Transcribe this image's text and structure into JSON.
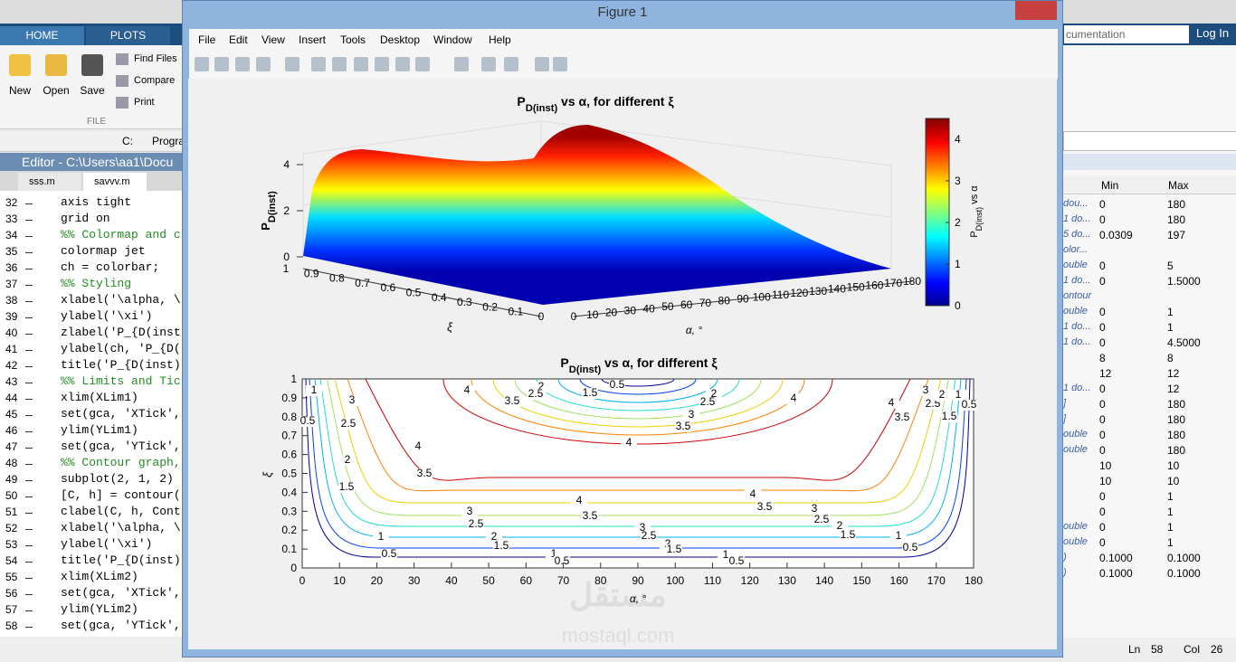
{
  "matlab": {
    "tabs": [
      "HOME",
      "PLOTS"
    ],
    "file_buttons": [
      "New",
      "Open",
      "Save"
    ],
    "file_tools": [
      "Find Files",
      "Compare",
      "Print"
    ],
    "section": "FILE",
    "path": [
      "C:",
      "Progra"
    ],
    "editor_title": "Editor - C:\\Users\\aa1\\Docu",
    "editor_tabs": [
      "sss.m",
      "savvv.m"
    ],
    "code_lines": [
      {
        "n": "32",
        "code": "axis tight"
      },
      {
        "n": "33",
        "code": "grid on"
      },
      {
        "n": "34",
        "code": "%% Colormap and c"
      },
      {
        "n": "35",
        "code": "colormap jet"
      },
      {
        "n": "36",
        "code": "ch = colorbar;"
      },
      {
        "n": "37",
        "code": "%% Styling"
      },
      {
        "n": "38",
        "code": "xlabel('\\alpha, \\"
      },
      {
        "n": "39",
        "code": "ylabel('\\xi')"
      },
      {
        "n": "40",
        "code": "zlabel('P_{D(inst"
      },
      {
        "n": "41",
        "code": "ylabel(ch, 'P_{D("
      },
      {
        "n": "42",
        "code": "title('P_{D(inst)"
      },
      {
        "n": "43",
        "code": "%% Limits and Tic"
      },
      {
        "n": "44",
        "code": "xlim(XLim1)"
      },
      {
        "n": "45",
        "code": "set(gca, 'XTick',"
      },
      {
        "n": "46",
        "code": "ylim(YLim1)"
      },
      {
        "n": "47",
        "code": "set(gca, 'YTick',"
      },
      {
        "n": "48",
        "code": "%% Contour graph,"
      },
      {
        "n": "49",
        "code": "subplot(2, 1, 2)"
      },
      {
        "n": "50",
        "code": "[C, h] = contour("
      },
      {
        "n": "51",
        "code": "clabel(C, h, Cont"
      },
      {
        "n": "52",
        "code": "xlabel('\\alpha, \\"
      },
      {
        "n": "53",
        "code": "ylabel('\\xi')"
      },
      {
        "n": "54",
        "code": "title('P_{D(inst)"
      },
      {
        "n": "55",
        "code": "xlim(XLim2)"
      },
      {
        "n": "56",
        "code": "set(gca, 'XTick',"
      },
      {
        "n": "57",
        "code": "ylim(YLim2)"
      },
      {
        "n": "58",
        "code": "set(gca, 'YTick',"
      }
    ],
    "search": "cumentation",
    "login": "Log In",
    "workspace": {
      "headers": [
        "Min",
        "Max"
      ],
      "rows": [
        {
          "name": "dou...",
          "min": "0",
          "max": "180"
        },
        {
          "name": "1 do...",
          "min": "0",
          "max": "180"
        },
        {
          "name": "5 do...",
          "min": "0.0309",
          "max": "197"
        },
        {
          "name": "olor..."
        },
        {
          "name": "ouble",
          "min": "0",
          "max": "5"
        },
        {
          "name": "1 do...",
          "min": "0",
          "max": "1.5000"
        },
        {
          "name": "ontour"
        },
        {
          "name": "ouble",
          "min": "0",
          "max": "1"
        },
        {
          "name": "1 do...",
          "min": "0",
          "max": "1"
        },
        {
          "name": "1 do...",
          "min": "0",
          "max": "4.5000"
        },
        {
          "min": "8",
          "max": "8"
        },
        {
          "min": "12",
          "max": "12"
        },
        {
          "name": "1 do...",
          "min": "0",
          "max": "12"
        },
        {
          "name": "]",
          "min": "0",
          "max": "180"
        },
        {
          "name": "]",
          "min": "0",
          "max": "180"
        },
        {
          "name": "ouble",
          "min": "0",
          "max": "180"
        },
        {
          "name": "ouble",
          "min": "0",
          "max": "180"
        },
        {
          "min": "10",
          "max": "10"
        },
        {
          "min": "10",
          "max": "10"
        },
        {
          "min": "0",
          "max": "1"
        },
        {
          "min": "0",
          "max": "1"
        },
        {
          "name": "ouble",
          "min": "0",
          "max": "1"
        },
        {
          "name": "ouble",
          "min": "0",
          "max": "1"
        },
        {
          "name": ")",
          "min": "0.1000",
          "max": "0.1000"
        },
        {
          "name": ")",
          "min": "0.1000",
          "max": "0.1000"
        }
      ]
    },
    "status": {
      "ln_label": "Ln",
      "ln": "58",
      "col_label": "Col",
      "col": "26"
    }
  },
  "figure": {
    "window_title": "Figure 1",
    "menu": [
      "File",
      "Edit",
      "View",
      "Insert",
      "Tools",
      "Desktop",
      "Window",
      "Help"
    ],
    "surface": {
      "title": {
        "p": "P",
        "sub": "D(inst)",
        "rest": " vs α, for different ξ"
      },
      "xlabel": "α, °",
      "ylabel": "ξ",
      "zlabel": {
        "p": "P",
        "sub": "D(inst)"
      },
      "xticks": [
        0,
        10,
        20,
        30,
        40,
        50,
        60,
        70,
        80,
        90,
        100,
        110,
        120,
        130,
        140,
        150,
        160,
        170,
        180
      ],
      "yticks": [
        1,
        0.9,
        0.8,
        0.7,
        0.6,
        0.5,
        0.4,
        0.3,
        0.2,
        0.1,
        0
      ],
      "zticks": [
        0,
        2,
        4
      ],
      "colorbar": {
        "ticks": [
          0,
          1,
          2,
          3,
          4
        ],
        "lim": [
          0,
          4.5
        ],
        "label": {
          "p": "P",
          "sub": "D(inst)",
          "rest": " vs α"
        }
      }
    },
    "contour": {
      "title": {
        "p": "P",
        "sub": "D(inst)",
        "rest": " vs α, for different ξ"
      },
      "xlabel": "α, °",
      "ylabel": "ξ",
      "xticks": [
        0,
        10,
        20,
        30,
        40,
        50,
        60,
        70,
        80,
        90,
        100,
        110,
        120,
        130,
        140,
        150,
        160,
        170,
        180
      ],
      "yticks": [
        0,
        0.1,
        0.2,
        0.3,
        0.4,
        0.5,
        0.6,
        0.7,
        0.8,
        0.9,
        1
      ],
      "labels": [
        "0.5",
        "1.5",
        "2",
        "2.5",
        "3.5",
        "4",
        "2",
        "2.5",
        "3",
        "3.5",
        "4",
        "4",
        "1",
        "0.5",
        "3",
        "2.5",
        "2",
        "1.5",
        "4",
        "3.5",
        "4",
        "3.5",
        "3",
        "2.5",
        "2",
        "1.5",
        "1",
        "0.5",
        "4",
        "4",
        "3.5",
        "3.5",
        "3",
        "2.5",
        "2",
        "1.5",
        "1",
        "0.5",
        "1",
        "0.5",
        "3",
        "2.5",
        "2",
        "1.5",
        "1",
        "0.5",
        "3",
        "2.5",
        "2",
        "1.5",
        "1",
        "0.5"
      ]
    }
  },
  "watermark": {
    "arabic": "مستقل",
    "latin": "mostaql.com"
  }
}
